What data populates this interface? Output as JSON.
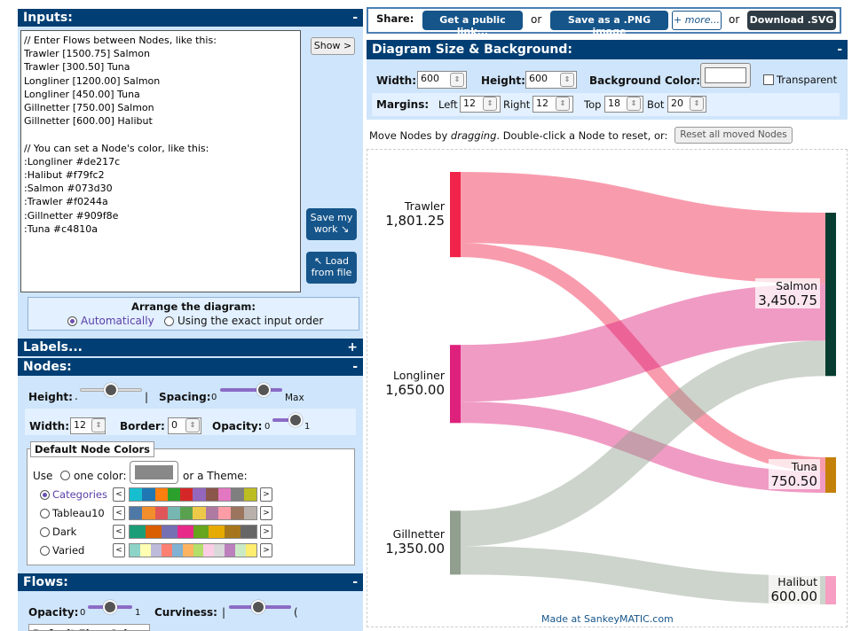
{
  "inputs": {
    "title": "Inputs:",
    "toggle": "-",
    "text": "// Enter Flows between Nodes, like this:\nTrawler [1500.75] Salmon\nTrawler [300.50] Tuna\nLongliner [1200.00] Salmon\nLongliner [450.00] Tuna\nGillnetter [750.00] Salmon\nGillnetter [600.00] Halibut\n\n// You can set a Node's color, like this:\n:Longliner #de217c\n:Halibut #f79fc2\n:Salmon #073d30\n:Trawler #f0244a\n:Gillnetter #909f8e\n:Tuna #c4810a",
    "show_button": "Show >",
    "save_button": "Save my work ↘",
    "load_button": "↖ Load from file",
    "arrange_title": "Arrange the diagram:",
    "arrange_auto": "Automatically",
    "arrange_exact": "Using the exact input order"
  },
  "labels": {
    "title": "Labels...",
    "toggle": "+"
  },
  "nodes": {
    "title": "Nodes:",
    "toggle": "-",
    "height_label": "Height:",
    "height_min": ".",
    "height_max": "|",
    "spacing_label": "Spacing:",
    "spacing_min": "0",
    "spacing_max": "Max",
    "width_label": "Width:",
    "width_value": "12",
    "border_label": "Border:",
    "border_value": "0",
    "opacity_label": "Opacity:",
    "opacity_min": "0",
    "opacity_max": "1",
    "default_colors_title": "Default Node Colors",
    "use_label": "Use",
    "one_color_label": "one color:",
    "theme_label": "or a Theme:",
    "themes": [
      {
        "name": "Categories",
        "selected": true,
        "colors": [
          "#17becf",
          "#1f77b4",
          "#ff7f0e",
          "#2ca02c",
          "#d62728",
          "#9467bd",
          "#8c564b",
          "#e377c2",
          "#7f7f7f",
          "#bcbd22"
        ]
      },
      {
        "name": "Tableau10",
        "selected": false,
        "colors": [
          "#4e79a7",
          "#f28e2c",
          "#e15759",
          "#76b7b2",
          "#59a14f",
          "#edc949",
          "#af7aa1",
          "#ff9da7",
          "#9c755f",
          "#bab0ab"
        ]
      },
      {
        "name": "Dark",
        "selected": false,
        "colors": [
          "#1b9e77",
          "#d95f02",
          "#7570b3",
          "#e7298a",
          "#66a61e",
          "#e6ab02",
          "#a6761d",
          "#666666"
        ]
      },
      {
        "name": "Varied",
        "selected": false,
        "colors": [
          "#8dd3c7",
          "#ffffb3",
          "#bebada",
          "#fb8072",
          "#80b1d3",
          "#fdb462",
          "#b3de69",
          "#fccde5",
          "#d9d9d9",
          "#bc80bd",
          "#ccebc5",
          "#ffed6f"
        ]
      }
    ]
  },
  "flows": {
    "title": "Flows:",
    "toggle": "-",
    "opacity_label": "Opacity:",
    "opacity_min": "0",
    "opacity_max": "1",
    "curviness_label": "Curviness:",
    "curviness_min": "|",
    "curviness_max": "(",
    "default_title": "Default Flow Colors"
  },
  "share": {
    "label": "Share:",
    "public_link": "Get a public link...",
    "or1": "or",
    "png": "Save as a .PNG image",
    "more": "+ more...",
    "or2": "or",
    "svg": "Download .SVG"
  },
  "diagram_size": {
    "title": "Diagram Size & Background:",
    "toggle": "-",
    "width_label": "Width:",
    "width_value": "600",
    "height_label": "Height:",
    "height_value": "600",
    "bg_label": "Background Color:",
    "transparent_label": "Transparent",
    "margins_label": "Margins:",
    "left_label": "Left",
    "left_value": "12",
    "right_label": "Right",
    "right_value": "12",
    "top_label": "Top",
    "top_value": "18",
    "bot_label": "Bot",
    "bot_value": "20"
  },
  "move_note": {
    "prefix": "Move Nodes by ",
    "emph": "dragging",
    "suffix": ". Double-click a Node to reset, or:",
    "reset_button": "Reset all moved Nodes"
  },
  "sankey": {
    "nodes": [
      {
        "id": "Trawler",
        "label": "Trawler",
        "value": "1,801.25",
        "color": "#f0244a"
      },
      {
        "id": "Longliner",
        "label": "Longliner",
        "value": "1,650.00",
        "color": "#de217c"
      },
      {
        "id": "Gillnetter",
        "label": "Gillnetter",
        "value": "1,350.00",
        "color": "#909f8e"
      },
      {
        "id": "Salmon",
        "label": "Salmon",
        "value": "3,450.75",
        "color": "#073d30"
      },
      {
        "id": "Tuna",
        "label": "Tuna",
        "value": "750.50",
        "color": "#c4810a"
      },
      {
        "id": "Halibut",
        "label": "Halibut",
        "value": "600.00",
        "color": "#f79fc2"
      }
    ],
    "flows": [
      {
        "from": "Trawler",
        "to": "Salmon",
        "value": 1500.75
      },
      {
        "from": "Trawler",
        "to": "Tuna",
        "value": 300.5
      },
      {
        "from": "Longliner",
        "to": "Salmon",
        "value": 1200.0
      },
      {
        "from": "Longliner",
        "to": "Tuna",
        "value": 450.0
      },
      {
        "from": "Gillnetter",
        "to": "Salmon",
        "value": 750.0
      },
      {
        "from": "Gillnetter",
        "to": "Halibut",
        "value": 600.0
      }
    ],
    "credit": "Made at SankeyMATIC.com"
  }
}
